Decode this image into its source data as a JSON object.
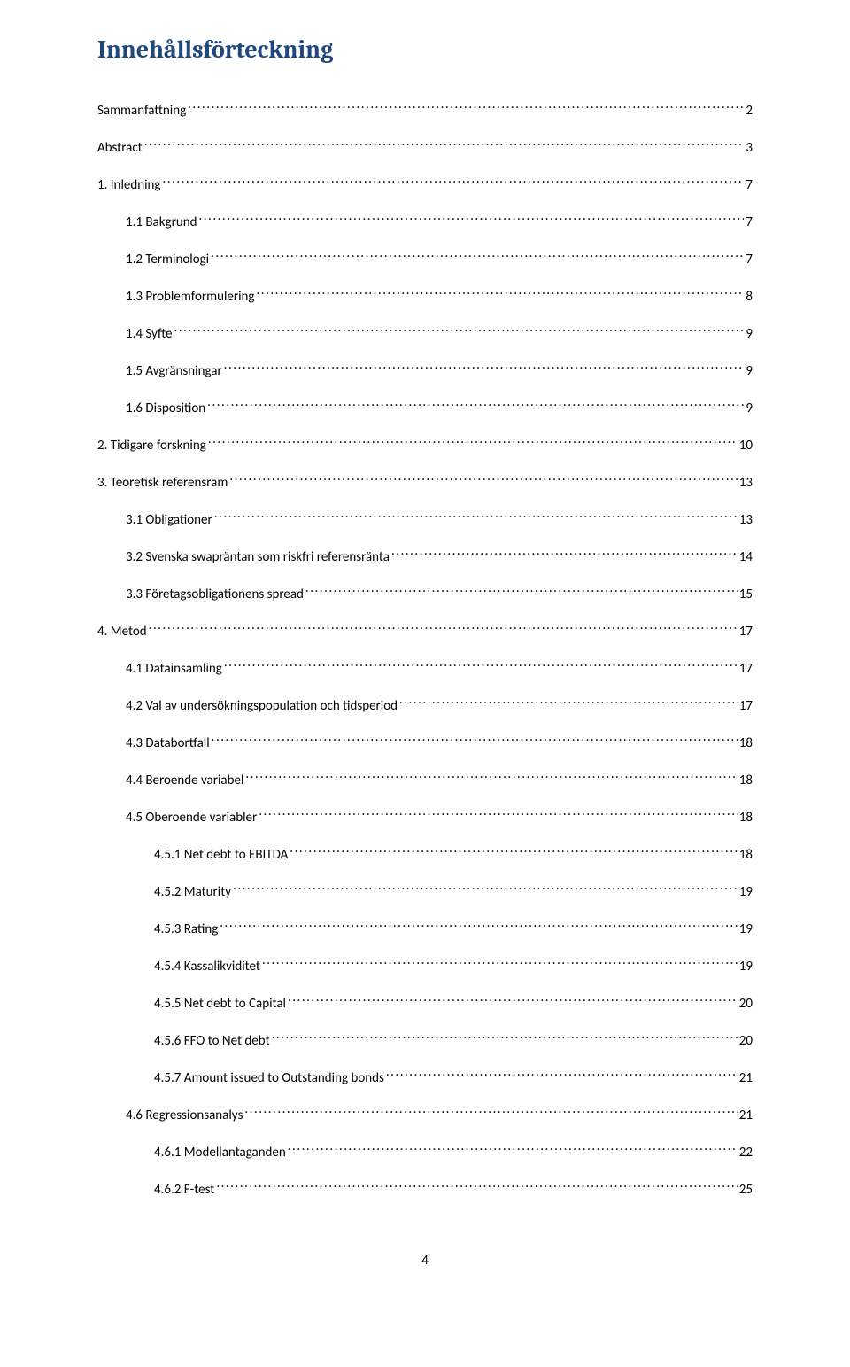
{
  "title": "Innehållsförteckning",
  "page_number": "4",
  "colors": {
    "heading": "#1f497d",
    "body_text": "#000000",
    "background": "#ffffff"
  },
  "fonts": {
    "heading_family": "Cambria",
    "body_family": "Calibri",
    "heading_size_pt": 20,
    "body_size_pt": 11
  },
  "toc": [
    {
      "level": 0,
      "label": "Sammanfattning",
      "page": "2"
    },
    {
      "level": 0,
      "label": "Abstract",
      "page": "3"
    },
    {
      "level": 0,
      "label": "1. Inledning",
      "page": "7"
    },
    {
      "level": 1,
      "label": "1.1 Bakgrund",
      "page": "7"
    },
    {
      "level": 1,
      "label": "1.2 Terminologi",
      "page": "7"
    },
    {
      "level": 1,
      "label": "1.3 Problemformulering",
      "page": "8"
    },
    {
      "level": 1,
      "label": "1.4 Syfte",
      "page": "9"
    },
    {
      "level": 1,
      "label": "1.5 Avgränsningar",
      "page": "9"
    },
    {
      "level": 1,
      "label": "1.6 Disposition",
      "page": "9"
    },
    {
      "level": 0,
      "label": "2. Tidigare forskning",
      "page": "10"
    },
    {
      "level": 0,
      "label": "3. Teoretisk referensram",
      "page": "13"
    },
    {
      "level": 1,
      "label": "3.1 Obligationer",
      "page": "13"
    },
    {
      "level": 1,
      "label": "3.2 Svenska swapräntan som riskfri referensränta",
      "page": "14"
    },
    {
      "level": 1,
      "label": "3.3 Företagsobligationens spread",
      "page": "15"
    },
    {
      "level": 0,
      "label": "4. Metod",
      "page": "17"
    },
    {
      "level": 1,
      "label": "4.1 Datainsamling",
      "page": "17"
    },
    {
      "level": 1,
      "label": "4.2 Val av undersökningspopulation och tidsperiod",
      "page": "17"
    },
    {
      "level": 1,
      "label": "4.3 Databortfall",
      "page": "18"
    },
    {
      "level": 1,
      "label": "4.4 Beroende variabel",
      "page": "18"
    },
    {
      "level": 1,
      "label": "4.5 Oberoende variabler",
      "page": "18"
    },
    {
      "level": 2,
      "label": "4.5.1 Net debt to EBITDA",
      "page": "18"
    },
    {
      "level": 2,
      "label": "4.5.2 Maturity",
      "page": "19"
    },
    {
      "level": 2,
      "label": "4.5.3 Rating",
      "page": "19"
    },
    {
      "level": 2,
      "label": "4.5.4 Kassalikviditet",
      "page": "19"
    },
    {
      "level": 2,
      "label": "4.5.5 Net debt to Capital",
      "page": "20"
    },
    {
      "level": 2,
      "label": "4.5.6 FFO to Net debt",
      "page": "20"
    },
    {
      "level": 2,
      "label": "4.5.7 Amount issued to Outstanding bonds",
      "page": "21"
    },
    {
      "level": 1,
      "label": "4.6 Regressionsanalys",
      "page": "21"
    },
    {
      "level": 2,
      "label": "4.6.1 Modellantaganden",
      "page": "22"
    },
    {
      "level": 2,
      "label": "4.6.2 F-test",
      "page": "25"
    }
  ]
}
